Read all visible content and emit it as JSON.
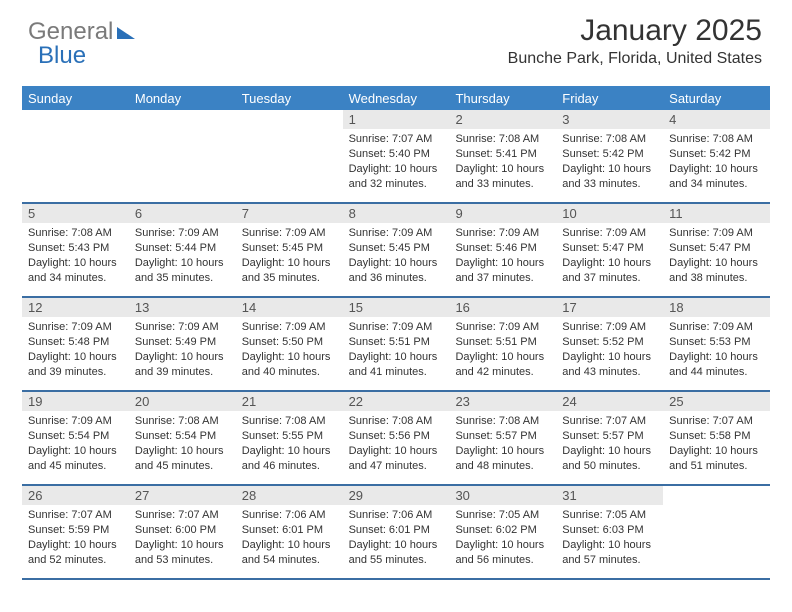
{
  "logo": {
    "part1": "General",
    "part2": "Blue"
  },
  "title": "January 2025",
  "subtitle": "Bunche Park, Florida, United States",
  "colors": {
    "header_bg": "#3b82c4",
    "header_text": "#ffffff",
    "week_divider": "#3b6ea3",
    "daynum_bg": "#e9e9e9",
    "logo_gray": "#7a7a7a",
    "logo_blue": "#2a70b8",
    "body_text": "#333333",
    "page_bg": "#ffffff"
  },
  "typography": {
    "title_fontsize": 30,
    "subtitle_fontsize": 16,
    "dayheader_fontsize": 13,
    "daynum_fontsize": 13,
    "body_fontsize": 11,
    "font_family": "Arial"
  },
  "day_headers": [
    "Sunday",
    "Monday",
    "Tuesday",
    "Wednesday",
    "Thursday",
    "Friday",
    "Saturday"
  ],
  "weeks": [
    [
      {
        "empty": true
      },
      {
        "empty": true
      },
      {
        "empty": true
      },
      {
        "num": "1",
        "sunrise": "Sunrise: 7:07 AM",
        "sunset": "Sunset: 5:40 PM",
        "day1": "Daylight: 10 hours",
        "day2": "and 32 minutes."
      },
      {
        "num": "2",
        "sunrise": "Sunrise: 7:08 AM",
        "sunset": "Sunset: 5:41 PM",
        "day1": "Daylight: 10 hours",
        "day2": "and 33 minutes."
      },
      {
        "num": "3",
        "sunrise": "Sunrise: 7:08 AM",
        "sunset": "Sunset: 5:42 PM",
        "day1": "Daylight: 10 hours",
        "day2": "and 33 minutes."
      },
      {
        "num": "4",
        "sunrise": "Sunrise: 7:08 AM",
        "sunset": "Sunset: 5:42 PM",
        "day1": "Daylight: 10 hours",
        "day2": "and 34 minutes."
      }
    ],
    [
      {
        "num": "5",
        "sunrise": "Sunrise: 7:08 AM",
        "sunset": "Sunset: 5:43 PM",
        "day1": "Daylight: 10 hours",
        "day2": "and 34 minutes."
      },
      {
        "num": "6",
        "sunrise": "Sunrise: 7:09 AM",
        "sunset": "Sunset: 5:44 PM",
        "day1": "Daylight: 10 hours",
        "day2": "and 35 minutes."
      },
      {
        "num": "7",
        "sunrise": "Sunrise: 7:09 AM",
        "sunset": "Sunset: 5:45 PM",
        "day1": "Daylight: 10 hours",
        "day2": "and 35 minutes."
      },
      {
        "num": "8",
        "sunrise": "Sunrise: 7:09 AM",
        "sunset": "Sunset: 5:45 PM",
        "day1": "Daylight: 10 hours",
        "day2": "and 36 minutes."
      },
      {
        "num": "9",
        "sunrise": "Sunrise: 7:09 AM",
        "sunset": "Sunset: 5:46 PM",
        "day1": "Daylight: 10 hours",
        "day2": "and 37 minutes."
      },
      {
        "num": "10",
        "sunrise": "Sunrise: 7:09 AM",
        "sunset": "Sunset: 5:47 PM",
        "day1": "Daylight: 10 hours",
        "day2": "and 37 minutes."
      },
      {
        "num": "11",
        "sunrise": "Sunrise: 7:09 AM",
        "sunset": "Sunset: 5:47 PM",
        "day1": "Daylight: 10 hours",
        "day2": "and 38 minutes."
      }
    ],
    [
      {
        "num": "12",
        "sunrise": "Sunrise: 7:09 AM",
        "sunset": "Sunset: 5:48 PM",
        "day1": "Daylight: 10 hours",
        "day2": "and 39 minutes."
      },
      {
        "num": "13",
        "sunrise": "Sunrise: 7:09 AM",
        "sunset": "Sunset: 5:49 PM",
        "day1": "Daylight: 10 hours",
        "day2": "and 39 minutes."
      },
      {
        "num": "14",
        "sunrise": "Sunrise: 7:09 AM",
        "sunset": "Sunset: 5:50 PM",
        "day1": "Daylight: 10 hours",
        "day2": "and 40 minutes."
      },
      {
        "num": "15",
        "sunrise": "Sunrise: 7:09 AM",
        "sunset": "Sunset: 5:51 PM",
        "day1": "Daylight: 10 hours",
        "day2": "and 41 minutes."
      },
      {
        "num": "16",
        "sunrise": "Sunrise: 7:09 AM",
        "sunset": "Sunset: 5:51 PM",
        "day1": "Daylight: 10 hours",
        "day2": "and 42 minutes."
      },
      {
        "num": "17",
        "sunrise": "Sunrise: 7:09 AM",
        "sunset": "Sunset: 5:52 PM",
        "day1": "Daylight: 10 hours",
        "day2": "and 43 minutes."
      },
      {
        "num": "18",
        "sunrise": "Sunrise: 7:09 AM",
        "sunset": "Sunset: 5:53 PM",
        "day1": "Daylight: 10 hours",
        "day2": "and 44 minutes."
      }
    ],
    [
      {
        "num": "19",
        "sunrise": "Sunrise: 7:09 AM",
        "sunset": "Sunset: 5:54 PM",
        "day1": "Daylight: 10 hours",
        "day2": "and 45 minutes."
      },
      {
        "num": "20",
        "sunrise": "Sunrise: 7:08 AM",
        "sunset": "Sunset: 5:54 PM",
        "day1": "Daylight: 10 hours",
        "day2": "and 45 minutes."
      },
      {
        "num": "21",
        "sunrise": "Sunrise: 7:08 AM",
        "sunset": "Sunset: 5:55 PM",
        "day1": "Daylight: 10 hours",
        "day2": "and 46 minutes."
      },
      {
        "num": "22",
        "sunrise": "Sunrise: 7:08 AM",
        "sunset": "Sunset: 5:56 PM",
        "day1": "Daylight: 10 hours",
        "day2": "and 47 minutes."
      },
      {
        "num": "23",
        "sunrise": "Sunrise: 7:08 AM",
        "sunset": "Sunset: 5:57 PM",
        "day1": "Daylight: 10 hours",
        "day2": "and 48 minutes."
      },
      {
        "num": "24",
        "sunrise": "Sunrise: 7:07 AM",
        "sunset": "Sunset: 5:57 PM",
        "day1": "Daylight: 10 hours",
        "day2": "and 50 minutes."
      },
      {
        "num": "25",
        "sunrise": "Sunrise: 7:07 AM",
        "sunset": "Sunset: 5:58 PM",
        "day1": "Daylight: 10 hours",
        "day2": "and 51 minutes."
      }
    ],
    [
      {
        "num": "26",
        "sunrise": "Sunrise: 7:07 AM",
        "sunset": "Sunset: 5:59 PM",
        "day1": "Daylight: 10 hours",
        "day2": "and 52 minutes."
      },
      {
        "num": "27",
        "sunrise": "Sunrise: 7:07 AM",
        "sunset": "Sunset: 6:00 PM",
        "day1": "Daylight: 10 hours",
        "day2": "and 53 minutes."
      },
      {
        "num": "28",
        "sunrise": "Sunrise: 7:06 AM",
        "sunset": "Sunset: 6:01 PM",
        "day1": "Daylight: 10 hours",
        "day2": "and 54 minutes."
      },
      {
        "num": "29",
        "sunrise": "Sunrise: 7:06 AM",
        "sunset": "Sunset: 6:01 PM",
        "day1": "Daylight: 10 hours",
        "day2": "and 55 minutes."
      },
      {
        "num": "30",
        "sunrise": "Sunrise: 7:05 AM",
        "sunset": "Sunset: 6:02 PM",
        "day1": "Daylight: 10 hours",
        "day2": "and 56 minutes."
      },
      {
        "num": "31",
        "sunrise": "Sunrise: 7:05 AM",
        "sunset": "Sunset: 6:03 PM",
        "day1": "Daylight: 10 hours",
        "day2": "and 57 minutes."
      },
      {
        "empty": true
      }
    ]
  ]
}
